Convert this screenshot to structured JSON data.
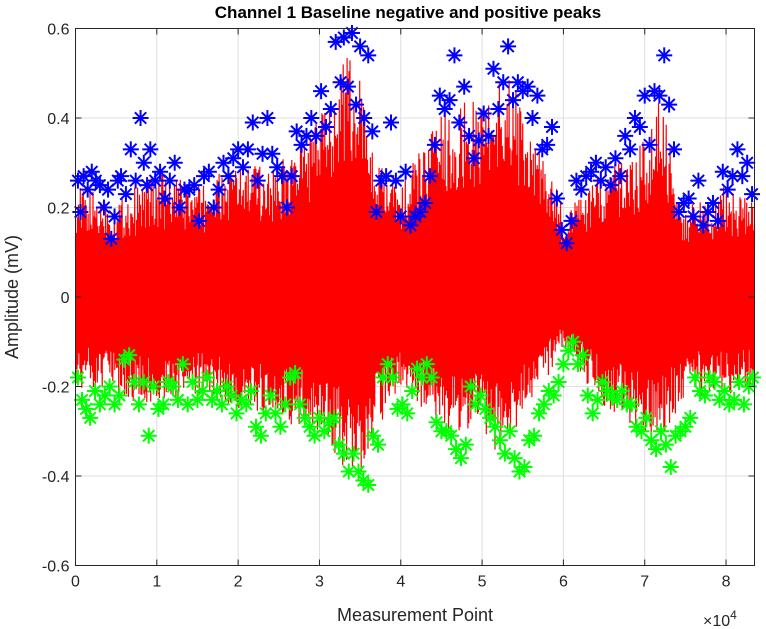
{
  "chart_data": {
    "type": "line",
    "title": "Channel 1 Baseline negative and positive peaks",
    "xlabel": "Measurement Point",
    "ylabel": "Amplitude (mV)",
    "x_exponent_label": "×10",
    "x_exponent_power": "4",
    "xlim": [
      0,
      83500
    ],
    "ylim": [
      -0.6,
      0.6
    ],
    "x_ticks": [
      0,
      10000,
      20000,
      30000,
      40000,
      50000,
      60000,
      70000,
      80000
    ],
    "x_tick_labels": [
      "0",
      "1",
      "2",
      "3",
      "4",
      "5",
      "6",
      "7",
      "8"
    ],
    "y_ticks": [
      -0.6,
      -0.4,
      -0.2,
      0,
      0.2,
      0.4,
      0.6
    ],
    "y_tick_labels": [
      "-0.6",
      "-0.4",
      "-0.2",
      "0",
      "0.2",
      "0.4",
      "0.6"
    ],
    "grid": true,
    "colors": {
      "signal": "#ff0000",
      "positive_peaks": "#0000ff",
      "negative_peaks": "#00ff00"
    },
    "series": [
      {
        "type": "signal",
        "x": [
          0,
          5000,
          10000,
          15000,
          20000,
          25000,
          30000,
          33000,
          35000,
          37000,
          40000,
          45000,
          50000,
          53000,
          55000,
          58000,
          60000,
          65000,
          70000,
          72000,
          75000,
          80000,
          83500
        ],
        "envelope_upper": [
          0.25,
          0.22,
          0.28,
          0.25,
          0.3,
          0.3,
          0.4,
          0.55,
          0.5,
          0.3,
          0.25,
          0.42,
          0.45,
          0.52,
          0.42,
          0.3,
          0.2,
          0.28,
          0.35,
          0.45,
          0.2,
          0.25,
          0.22
        ],
        "envelope_lower": [
          -0.2,
          -0.22,
          -0.25,
          -0.22,
          -0.25,
          -0.28,
          -0.3,
          -0.38,
          -0.4,
          -0.3,
          -0.2,
          -0.3,
          -0.3,
          -0.38,
          -0.25,
          -0.18,
          -0.12,
          -0.25,
          -0.3,
          -0.32,
          -0.22,
          -0.22,
          -0.2
        ]
      },
      {
        "type": "positive_peaks",
        "x": [
          300,
          600,
          1000,
          1500,
          2000,
          2500,
          3000,
          3500,
          4000,
          4400,
          4800,
          5200,
          5600,
          6200,
          6800,
          7400,
          8000,
          8400,
          8800,
          9200,
          9800,
          10400,
          11000,
          11600,
          12200,
          12800,
          13400,
          14000,
          14600,
          15200,
          15800,
          16400,
          17000,
          17600,
          18200,
          18800,
          19400,
          20000,
          20600,
          21200,
          21800,
          22400,
          23000,
          23600,
          24200,
          24800,
          25400,
          26000,
          26600,
          27200,
          27800,
          28400,
          29000,
          29600,
          30200,
          30800,
          31400,
          32000,
          32600,
          33000,
          33500,
          34000,
          34500,
          35000,
          35500,
          36000,
          36500,
          37000,
          37600,
          38200,
          38800,
          39400,
          40000,
          40600,
          41200,
          41800,
          42400,
          43000,
          43600,
          44200,
          44800,
          45400,
          46000,
          46600,
          47200,
          47800,
          48400,
          49000,
          49600,
          50200,
          50800,
          51400,
          52000,
          52600,
          53200,
          53800,
          54400,
          55000,
          55600,
          56200,
          56800,
          57400,
          58000,
          58600,
          59200,
          59800,
          60400,
          61000,
          61600,
          62200,
          62800,
          63400,
          64000,
          64600,
          65200,
          65800,
          66400,
          67000,
          67600,
          68200,
          68800,
          69400,
          70000,
          70600,
          71200,
          71800,
          72400,
          73000,
          73600,
          74200,
          74800,
          75400,
          76000,
          76600,
          77200,
          77800,
          78400,
          79000,
          79600,
          80200,
          80800,
          81400,
          82000,
          82600,
          83200
        ],
        "y": [
          0.26,
          0.19,
          0.27,
          0.24,
          0.28,
          0.26,
          0.25,
          0.2,
          0.24,
          0.13,
          0.18,
          0.26,
          0.27,
          0.23,
          0.33,
          0.26,
          0.4,
          0.3,
          0.25,
          0.33,
          0.26,
          0.28,
          0.22,
          0.26,
          0.3,
          0.2,
          0.24,
          0.24,
          0.25,
          0.17,
          0.27,
          0.28,
          0.2,
          0.24,
          0.3,
          0.27,
          0.31,
          0.33,
          0.29,
          0.33,
          0.39,
          0.26,
          0.32,
          0.4,
          0.32,
          0.29,
          0.27,
          0.2,
          0.27,
          0.37,
          0.34,
          0.36,
          0.4,
          0.36,
          0.46,
          0.38,
          0.42,
          0.57,
          0.48,
          0.58,
          0.47,
          0.59,
          0.43,
          0.56,
          0.4,
          0.54,
          0.37,
          0.19,
          0.26,
          0.27,
          0.39,
          0.26,
          0.18,
          0.28,
          0.16,
          0.18,
          0.19,
          0.21,
          0.27,
          0.34,
          0.45,
          0.42,
          0.44,
          0.54,
          0.39,
          0.47,
          0.36,
          0.31,
          0.35,
          0.41,
          0.36,
          0.51,
          0.42,
          0.48,
          0.56,
          0.44,
          0.48,
          0.46,
          0.47,
          0.4,
          0.45,
          0.33,
          0.34,
          0.38,
          0.22,
          0.15,
          0.12,
          0.17,
          0.26,
          0.24,
          0.27,
          0.28,
          0.3,
          0.26,
          0.29,
          0.25,
          0.31,
          0.27,
          0.36,
          0.33,
          0.4,
          0.38,
          0.45,
          0.34,
          0.46,
          0.45,
          0.54,
          0.43,
          0.33,
          0.19,
          0.21,
          0.22,
          0.18,
          0.26,
          0.16,
          0.19,
          0.21,
          0.17,
          0.28,
          0.24,
          0.27,
          0.33,
          0.27,
          0.3,
          0.23
        ]
      },
      {
        "type": "negative_peaks",
        "x": [
          300,
          800,
          1300,
          1800,
          2400,
          3000,
          3600,
          4200,
          4800,
          5400,
          6000,
          6600,
          7200,
          7800,
          8400,
          9000,
          9600,
          10200,
          10800,
          11400,
          12000,
          12600,
          13200,
          13800,
          14400,
          15000,
          15600,
          16200,
          16800,
          17400,
          18000,
          18600,
          19200,
          19800,
          20400,
          21000,
          21600,
          22200,
          22800,
          23400,
          24000,
          24600,
          25200,
          25800,
          26400,
          27000,
          27600,
          28200,
          28800,
          29400,
          30000,
          30600,
          31200,
          31800,
          32400,
          33000,
          33600,
          34200,
          34800,
          35400,
          36000,
          36600,
          37200,
          37800,
          38400,
          39000,
          39600,
          40200,
          40800,
          41400,
          42000,
          42600,
          43200,
          43800,
          44400,
          45000,
          45600,
          46200,
          46800,
          47400,
          48000,
          48600,
          49200,
          49800,
          50400,
          51000,
          51600,
          52200,
          52800,
          53400,
          54000,
          54600,
          55200,
          55800,
          56400,
          57000,
          57600,
          58200,
          58800,
          59400,
          60000,
          60600,
          61200,
          61800,
          62400,
          63000,
          63600,
          64200,
          64800,
          65400,
          66000,
          66600,
          67200,
          67800,
          68400,
          69000,
          69600,
          70200,
          70800,
          71400,
          72000,
          72600,
          73200,
          73800,
          74400,
          75000,
          75600,
          76200,
          76800,
          77400,
          78000,
          78600,
          79200,
          79800,
          80400,
          81000,
          81600,
          82200,
          82800,
          83300
        ],
        "y": [
          -0.18,
          -0.23,
          -0.25,
          -0.27,
          -0.21,
          -0.24,
          -0.22,
          -0.2,
          -0.24,
          -0.22,
          -0.14,
          -0.13,
          -0.19,
          -0.24,
          -0.19,
          -0.31,
          -0.2,
          -0.25,
          -0.24,
          -0.19,
          -0.2,
          -0.23,
          -0.15,
          -0.24,
          -0.19,
          -0.23,
          -0.21,
          -0.18,
          -0.23,
          -0.21,
          -0.24,
          -0.2,
          -0.22,
          -0.26,
          -0.23,
          -0.24,
          -0.21,
          -0.29,
          -0.31,
          -0.26,
          -0.22,
          -0.26,
          -0.29,
          -0.24,
          -0.18,
          -0.17,
          -0.24,
          -0.27,
          -0.29,
          -0.31,
          -0.27,
          -0.3,
          -0.28,
          -0.27,
          -0.33,
          -0.35,
          -0.39,
          -0.35,
          -0.39,
          -0.41,
          -0.42,
          -0.31,
          -0.33,
          -0.18,
          -0.15,
          -0.18,
          -0.25,
          -0.24,
          -0.26,
          -0.21,
          -0.16,
          -0.18,
          -0.15,
          -0.18,
          -0.28,
          -0.3,
          -0.3,
          -0.31,
          -0.34,
          -0.36,
          -0.33,
          -0.2,
          -0.24,
          -0.22,
          -0.25,
          -0.27,
          -0.29,
          -0.32,
          -0.35,
          -0.3,
          -0.36,
          -0.39,
          -0.38,
          -0.32,
          -0.31,
          -0.26,
          -0.24,
          -0.21,
          -0.22,
          -0.19,
          -0.15,
          -0.12,
          -0.1,
          -0.15,
          -0.13,
          -0.22,
          -0.26,
          -0.23,
          -0.19,
          -0.21,
          -0.22,
          -0.23,
          -0.21,
          -0.24,
          -0.24,
          -0.29,
          -0.3,
          -0.27,
          -0.32,
          -0.34,
          -0.3,
          -0.33,
          -0.38,
          -0.31,
          -0.3,
          -0.29,
          -0.27,
          -0.18,
          -0.21,
          -0.22,
          -0.18,
          -0.19,
          -0.23,
          -0.21,
          -0.24,
          -0.23,
          -0.19,
          -0.24,
          -0.2,
          -0.18
        ]
      }
    ]
  }
}
